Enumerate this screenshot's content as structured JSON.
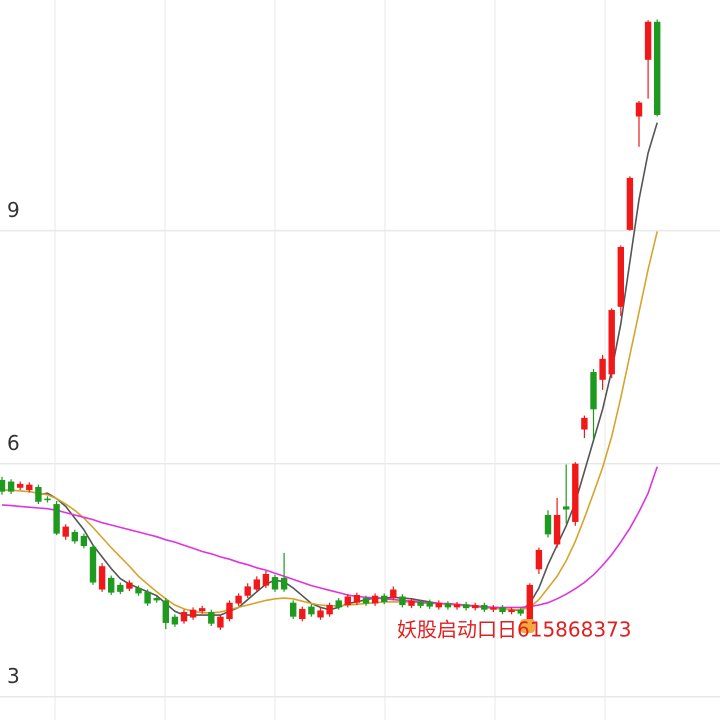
{
  "chart_data": {
    "type": "candlestick",
    "ylim": [
      2.7,
      11.97
    ],
    "yticks": [
      3,
      6,
      9
    ],
    "grid": true,
    "up_color": "#f01818",
    "down_color": "#1e9a1e",
    "open": [
      5.79,
      5.77,
      5.69,
      5.66,
      5.7,
      5.55,
      5.48,
      5.06,
      5.12,
      5.07,
      4.93,
      4.38,
      4.53,
      4.44,
      4.39,
      4.4,
      4.35,
      4.27,
      4.24,
      4.03,
      3.97,
      4.02,
      4.1,
      4.09,
      3.89,
      4.0,
      4.2,
      4.3,
      4.38,
      4.43,
      4.54,
      4.53,
      4.21,
      4.0,
      4.16,
      4.02,
      4.06,
      4.24,
      4.18,
      4.21,
      4.27,
      4.2,
      4.3,
      4.27,
      4.29,
      4.17,
      4.22,
      4.22,
      4.15,
      4.2,
      4.15,
      4.19,
      4.14,
      4.18,
      4.12,
      4.15,
      4.09,
      4.12,
      3.99,
      4.64,
      5.34,
      4.96,
      5.45,
      5.25,
      6.44,
      7.18,
      7.08,
      7.15,
      8.02,
      9.01,
      10.47,
      11.2,
      11.69
    ],
    "high": [
      5.83,
      5.8,
      5.77,
      5.76,
      5.73,
      5.58,
      5.52,
      5.22,
      5.15,
      5.1,
      4.96,
      4.72,
      4.56,
      4.47,
      4.5,
      4.43,
      4.38,
      4.3,
      4.27,
      4.06,
      4.12,
      4.15,
      4.17,
      4.12,
      4.06,
      4.24,
      4.33,
      4.46,
      4.55,
      4.62,
      4.57,
      4.85,
      4.24,
      4.16,
      4.19,
      4.14,
      4.21,
      4.27,
      4.32,
      4.34,
      4.3,
      4.33,
      4.33,
      4.42,
      4.32,
      4.27,
      4.25,
      4.25,
      4.24,
      4.23,
      4.22,
      4.22,
      4.21,
      4.21,
      4.18,
      4.18,
      4.15,
      4.15,
      4.46,
      4.92,
      5.4,
      5.56,
      5.99,
      6.02,
      6.62,
      7.22,
      7.4,
      8.0,
      8.81,
      9.7,
      10.67,
      11.71,
      11.72
    ],
    "low": [
      5.6,
      5.61,
      5.66,
      5.63,
      5.48,
      5.5,
      5.08,
      5.02,
      4.97,
      4.91,
      4.44,
      4.35,
      4.31,
      4.32,
      4.36,
      4.3,
      4.17,
      4.21,
      3.87,
      3.9,
      3.94,
      3.99,
      4.07,
      3.91,
      3.86,
      3.97,
      4.17,
      4.27,
      4.35,
      4.4,
      4.35,
      4.35,
      4.0,
      3.97,
      4.03,
      3.99,
      4.03,
      4.12,
      4.15,
      4.18,
      4.17,
      4.17,
      4.19,
      4.24,
      4.15,
      4.14,
      4.14,
      4.13,
      4.12,
      4.12,
      4.12,
      4.11,
      4.11,
      4.09,
      4.09,
      4.06,
      4.06,
      4.04,
      3.95,
      4.58,
      5.05,
      4.92,
      5.23,
      5.2,
      6.33,
      6.31,
      6.95,
      7.1,
      7.9,
      9.0,
      10.08,
      10.7,
      10.47
    ],
    "close": [
      5.64,
      5.64,
      5.74,
      5.73,
      5.51,
      5.53,
      5.1,
      5.19,
      5.0,
      4.94,
      4.47,
      4.68,
      4.34,
      4.35,
      4.47,
      4.33,
      4.2,
      4.24,
      3.95,
      3.93,
      4.09,
      4.12,
      4.14,
      3.94,
      4.03,
      4.21,
      4.3,
      4.42,
      4.51,
      4.58,
      4.38,
      4.38,
      4.03,
      4.13,
      4.06,
      4.11,
      4.18,
      4.15,
      4.29,
      4.31,
      4.2,
      4.3,
      4.22,
      4.38,
      4.18,
      4.24,
      4.17,
      4.16,
      4.21,
      4.15,
      4.19,
      4.14,
      4.18,
      4.12,
      4.15,
      4.09,
      4.12,
      4.07,
      4.44,
      4.89,
      5.09,
      5.34,
      5.41,
      6.0,
      6.59,
      6.7,
      7.35,
      7.98,
      8.79,
      9.68,
      10.65,
      11.69,
      10.49
    ],
    "lines": [
      {
        "color": "#555555",
        "values": [
          null,
          null,
          null,
          null,
          5.6,
          5.62,
          5.55,
          5.45,
          5.3,
          5.15,
          4.95,
          4.8,
          4.65,
          4.52,
          4.45,
          4.4,
          4.35,
          4.3,
          4.2,
          4.1,
          4.05,
          4.05,
          4.05,
          4.05,
          4.05,
          4.1,
          4.15,
          4.25,
          4.35,
          4.45,
          4.5,
          4.48,
          4.4,
          4.3,
          4.2,
          4.15,
          4.12,
          4.15,
          4.2,
          4.22,
          4.25,
          4.27,
          4.27,
          4.28,
          4.27,
          4.26,
          4.24,
          4.22,
          4.2,
          4.19,
          4.18,
          4.17,
          4.16,
          4.15,
          4.14,
          4.13,
          4.12,
          4.11,
          4.2,
          4.4,
          4.7,
          4.95,
          5.2,
          5.5,
          5.9,
          6.3,
          6.7,
          7.2,
          7.8,
          8.6,
          9.4,
          10.0,
          10.39
        ]
      },
      {
        "color": "#d4a52a",
        "values": [
          5.66,
          5.66,
          5.65,
          5.64,
          5.62,
          5.6,
          5.55,
          5.48,
          5.4,
          5.3,
          5.18,
          5.05,
          4.92,
          4.8,
          4.68,
          4.55,
          4.45,
          4.35,
          4.26,
          4.18,
          4.13,
          4.1,
          4.08,
          4.08,
          4.09,
          4.12,
          4.15,
          4.18,
          4.21,
          4.24,
          4.26,
          4.27,
          4.26,
          4.23,
          4.2,
          4.18,
          4.17,
          4.17,
          4.18,
          4.19,
          4.2,
          4.21,
          4.22,
          4.22,
          4.22,
          4.22,
          4.21,
          4.2,
          4.2,
          4.19,
          4.18,
          4.17,
          4.16,
          4.15,
          4.14,
          4.13,
          4.12,
          4.12,
          4.15,
          4.25,
          4.4,
          4.55,
          4.75,
          5.0,
          5.3,
          5.62,
          5.95,
          6.35,
          6.85,
          7.4,
          7.95,
          8.5,
          8.99
        ]
      },
      {
        "color": "#e033e0",
        "values": [
          5.47,
          5.46,
          5.45,
          5.44,
          5.43,
          5.42,
          5.4,
          5.37,
          5.34,
          5.31,
          5.28,
          5.24,
          5.21,
          5.18,
          5.15,
          5.12,
          5.09,
          5.06,
          5.02,
          4.99,
          4.95,
          4.91,
          4.87,
          4.84,
          4.8,
          4.77,
          4.73,
          4.7,
          4.66,
          4.63,
          4.59,
          4.55,
          4.51,
          4.47,
          4.43,
          4.4,
          4.37,
          4.34,
          4.31,
          4.29,
          4.28,
          4.27,
          4.26,
          4.25,
          4.24,
          4.23,
          4.22,
          4.21,
          4.2,
          4.2,
          4.19,
          4.18,
          4.17,
          4.16,
          4.15,
          4.15,
          4.15,
          4.15,
          4.16,
          4.18,
          4.21,
          4.26,
          4.32,
          4.39,
          4.47,
          4.57,
          4.69,
          4.83,
          4.99,
          5.17,
          5.38,
          5.62,
          5.96
        ]
      }
    ],
    "annotation": "妖股启动口日615868373"
  }
}
